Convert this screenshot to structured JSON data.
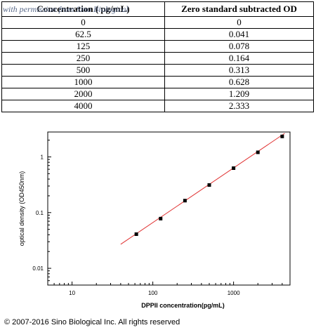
{
  "table": {
    "headers": [
      "Concentration ( pg/mL)",
      "Zero standard subtracted OD"
    ],
    "rows": [
      [
        "0",
        "0"
      ],
      [
        "62.5",
        "0.041"
      ],
      [
        "125",
        "0.078"
      ],
      [
        "250",
        "0.164"
      ],
      [
        "500",
        "0.313"
      ],
      [
        "1000",
        "0.628"
      ],
      [
        "2000",
        "1.209"
      ],
      [
        "4000",
        "2.333"
      ]
    ]
  },
  "watermark": "with permission from Sino Biological",
  "copyright": "© 2007-2016 Sino Biological Inc. All rights reserved",
  "chart_data": {
    "type": "scatter",
    "xscale": "log",
    "yscale": "log",
    "xlabel": "DPPII concentration(pg/mL)",
    "ylabel": "optical density (OD450nm)",
    "xlim": [
      5,
      5000
    ],
    "ylim": [
      0.005,
      2.8
    ],
    "xticks": [
      10,
      100,
      1000
    ],
    "xtick_labels": [
      "10",
      "100",
      "1000"
    ],
    "yticks": [
      0.01,
      0.1,
      1
    ],
    "ytick_labels": [
      "0.01",
      "0.1",
      "1"
    ],
    "grid": false,
    "series": [
      {
        "x": [
          62.5,
          125,
          250,
          500,
          1000,
          2000,
          4000
        ],
        "y": [
          0.041,
          0.078,
          0.164,
          0.313,
          0.628,
          1.209,
          2.333
        ],
        "color": "#000000"
      }
    ],
    "fit_line": {
      "x": [
        40,
        4300
      ],
      "y": [
        0.027,
        2.65
      ],
      "color": "#e03030"
    }
  }
}
